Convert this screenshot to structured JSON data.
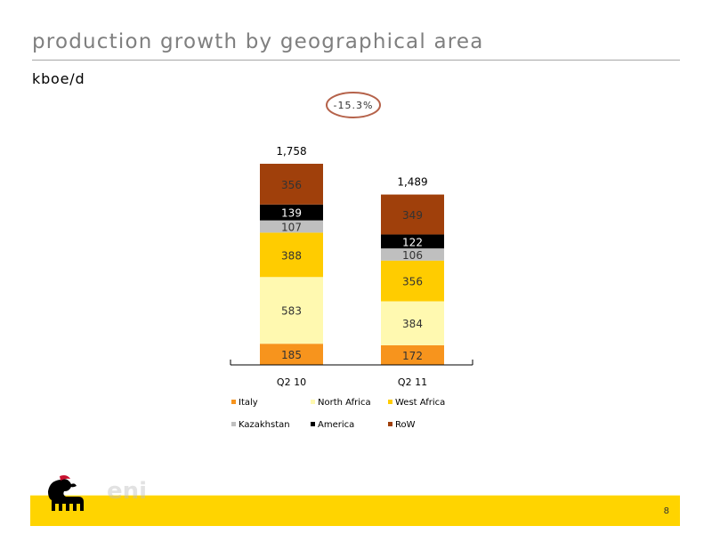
{
  "slide": {
    "title": "production growth by geographical area",
    "unit": "kboe/d",
    "page_number": "8",
    "logo_text": "eni"
  },
  "colors": {
    "title": "#7f7f7f",
    "footer_band": "#ffd400",
    "change_oval": "#b5624a",
    "Italy": "#f7941d",
    "North Africa": "#fff9b0",
    "West Africa": "#ffcc00",
    "Kazakhstan": "#bfbfbf",
    "America": "#000000",
    "RoW": "#a0400b"
  },
  "chart_data": {
    "type": "bar",
    "stacked": true,
    "categories": [
      "Q2 10",
      "Q2 11"
    ],
    "series": [
      {
        "name": "Italy",
        "values": [
          185,
          172
        ]
      },
      {
        "name": "North Africa",
        "values": [
          583,
          384
        ]
      },
      {
        "name": "West Africa",
        "values": [
          388,
          356
        ]
      },
      {
        "name": "Kazakhstan",
        "values": [
          107,
          106
        ]
      },
      {
        "name": "America",
        "values": [
          139,
          122
        ]
      },
      {
        "name": "RoW",
        "values": [
          356,
          349
        ]
      }
    ],
    "totals": [
      "1,758",
      "1,489"
    ],
    "change_label": "-15.3%",
    "legend": [
      "Italy",
      "North Africa",
      "West Africa",
      "Kazakhstan",
      "America",
      "RoW"
    ],
    "legend_position": "bottom",
    "grid": false,
    "ylim": [
      0,
      1758
    ]
  }
}
